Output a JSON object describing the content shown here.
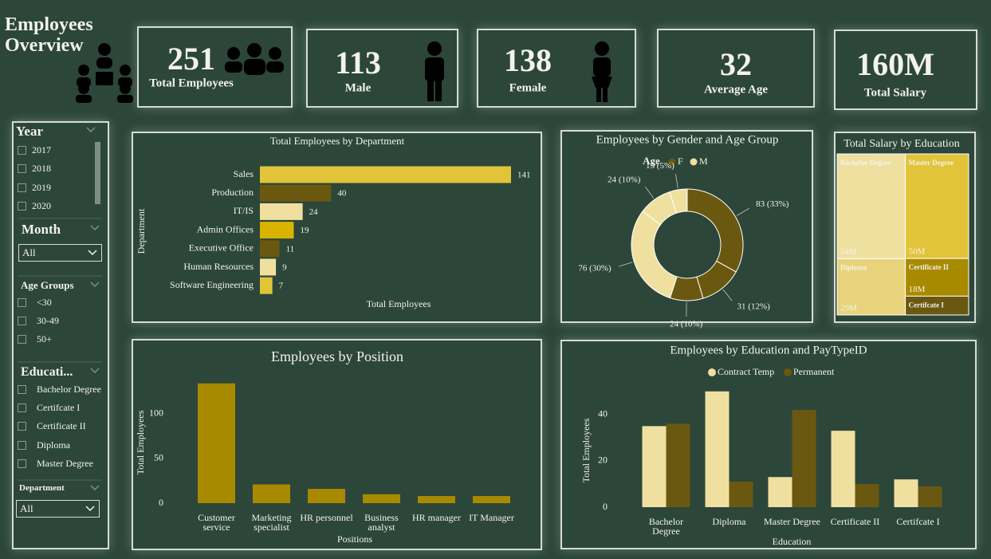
{
  "header": {
    "title": "Employees Overview"
  },
  "kpis": [
    {
      "value": 251,
      "label": "Total Employees"
    },
    {
      "value": 113,
      "label": "Male"
    },
    {
      "value": 138,
      "label": "Female"
    },
    {
      "value": 32,
      "label": "Average Age"
    },
    {
      "value": "160M",
      "label": "Total Salary"
    }
  ],
  "filters": [
    {
      "title": "Year",
      "options": [
        "2017",
        "2018",
        "2019",
        "2020"
      ]
    },
    {
      "title": "Month",
      "selected": "All"
    },
    {
      "title": "Age Groups",
      "options": [
        "<30",
        "30-49",
        "50+"
      ]
    },
    {
      "title": "Educati...",
      "options": [
        "Bachelor Degree",
        "Certifcate I",
        "Certificate II",
        "Diploma",
        "Master Degree"
      ]
    },
    {
      "title": "Department",
      "selected": "All"
    }
  ],
  "chart_data": [
    {
      "type": "hbar",
      "title": "Total Employees by Department",
      "x_label": "Total Employees",
      "y_label": "Department",
      "categories": [
        "Sales",
        "Production",
        "IT/IS",
        "Admin Offices",
        "Executive Office",
        "Human Resources",
        "Software Engineering"
      ],
      "values": [
        141,
        40,
        24,
        19,
        11,
        9,
        7
      ],
      "colors": [
        "#e2c43a",
        "#6b5810",
        "#efe0a0",
        "#d9b300",
        "#6b5810",
        "#efe0a0",
        "#e2c43a"
      ]
    },
    {
      "type": "donut",
      "title": "Employees by Gender and Age Group",
      "legend_title": "Age",
      "series": [
        {
          "name": "F",
          "color": "#6b5810",
          "values": [
            83,
            31,
            24
          ],
          "value_labels": [
            "83 (33%)",
            "31 (12%)",
            "24 (10%)"
          ]
        },
        {
          "name": "M",
          "color": "#efe0a0",
          "values": [
            76,
            24,
            13
          ],
          "value_labels": [
            "76 (30%)",
            "24 (10%)",
            "13 (5%)"
          ]
        }
      ]
    },
    {
      "type": "treemap",
      "title": "Total Salary by Education",
      "categories": [
        "Bachelor Degree",
        "Master Degree",
        "Diploma",
        "Certificate II",
        "Certifcate I"
      ],
      "values": [
        54000000,
        50000000,
        29000000,
        18000000,
        9000000
      ],
      "value_labels": [
        "54M",
        "50M",
        "29M",
        "18M",
        null
      ],
      "colors": [
        "#efe0a0",
        "#e2c43a",
        "#e8d37c",
        "#a88a00",
        "#6b5810"
      ]
    },
    {
      "type": "bar",
      "title": "Employees by Position",
      "x_label": "Positions",
      "y_label": "Total Employees",
      "categories": [
        "Customer service",
        "Marketing specialist",
        "HR personnel",
        "Business analyst",
        "HR manager",
        "IT Manager"
      ],
      "values": [
        134,
        21,
        16,
        10,
        8,
        8
      ],
      "color": "#a88a00",
      "ylim": [
        0,
        140
      ],
      "yticks": [
        0,
        50,
        100
      ]
    },
    {
      "type": "groupedbar",
      "title": "Employees by Education and PayTypeID",
      "x_label": "Education",
      "y_label": "Total Employees",
      "categories": [
        "Bachelor Degree",
        "Diploma",
        "Master Degree",
        "Certificate II",
        "Certifcate I"
      ],
      "series": [
        {
          "name": "Contract Temp",
          "color": "#efe0a0",
          "values": [
            35,
            50,
            13,
            33,
            12
          ]
        },
        {
          "name": "Permanent",
          "color": "#6b5810",
          "values": [
            36,
            11,
            42,
            10,
            9
          ]
        }
      ],
      "ylim": [
        0,
        52
      ],
      "yticks": [
        0,
        20,
        40
      ],
      "legend": "top"
    }
  ]
}
